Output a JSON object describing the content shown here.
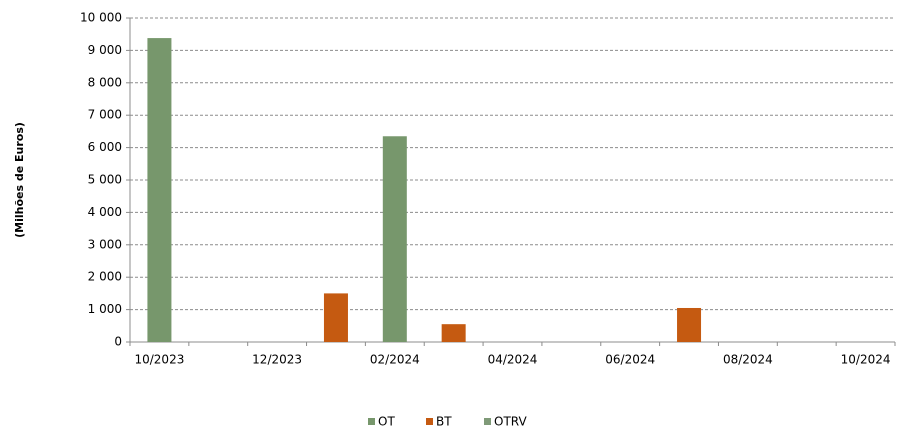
{
  "chart_data": {
    "type": "bar",
    "y_axis_label": "(Milhões de Euros)",
    "categories": [
      "10/2023",
      null,
      "12/2023",
      null,
      "02/2024",
      null,
      "04/2024",
      null,
      "06/2024",
      null,
      "08/2024",
      null,
      "10/2024"
    ],
    "series": [
      {
        "name": "OT",
        "color": "#77976c",
        "values": [
          9380,
          null,
          null,
          null,
          6350,
          null,
          null,
          null,
          null,
          null,
          null,
          null,
          null
        ]
      },
      {
        "name": "BT",
        "color": "#c55a11",
        "values": [
          null,
          null,
          null,
          1500,
          null,
          550,
          null,
          null,
          null,
          1050,
          null,
          null,
          null
        ]
      },
      {
        "name": "OTRV",
        "color": "#7f9a78",
        "values": [
          null,
          null,
          null,
          null,
          null,
          null,
          null,
          null,
          null,
          null,
          null,
          null,
          null
        ]
      }
    ],
    "ylim": [
      0,
      10000
    ],
    "yticks": [
      0,
      {
        "value": 1000,
        "label": "1 000"
      },
      {
        "value": 2000,
        "label": "2 000"
      },
      {
        "value": 3000,
        "label": "3 000"
      },
      {
        "value": 4000,
        "label": "4 000"
      },
      {
        "value": 5000,
        "label": "5 000"
      },
      {
        "value": 6000,
        "label": "6 000"
      },
      {
        "value": 7000,
        "label": "7 000"
      },
      {
        "value": 8000,
        "label": "8 000"
      },
      {
        "value": 9000,
        "label": "9 000"
      },
      {
        "value": 10000,
        "label": "10 000"
      }
    ],
    "grid": true,
    "legend": "bottom"
  }
}
